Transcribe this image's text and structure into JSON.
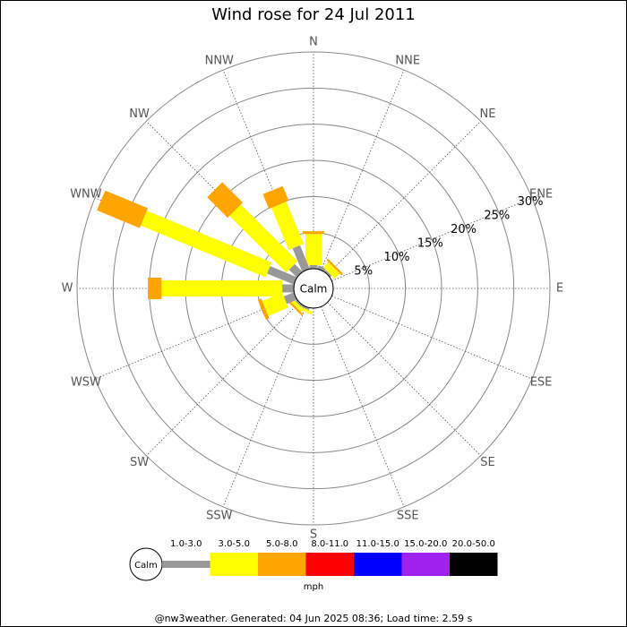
{
  "chart_data": {
    "type": "windrose",
    "title": "Wind rose for 24 Jul 2011",
    "directions": [
      "N",
      "NNE",
      "NE",
      "ENE",
      "E",
      "ESE",
      "SE",
      "SSE",
      "S",
      "SSW",
      "SW",
      "WSW",
      "W",
      "WNW",
      "NW",
      "NNW"
    ],
    "calm_label": "Calm",
    "unit": "mph",
    "footer": "@nw3weather. Generated: 04 Jun 2025 08:36; Load time: 2.59 s",
    "rlim": [
      0,
      30
    ],
    "rticks": [
      {
        "value": 5,
        "label": "5%"
      },
      {
        "value": 10,
        "label": "10%"
      },
      {
        "value": 15,
        "label": "15%"
      },
      {
        "value": 20,
        "label": "20%"
      },
      {
        "value": 25,
        "label": "25%"
      },
      {
        "value": 30,
        "label": "30%"
      }
    ],
    "series": [
      {
        "name": "1.0-3.0",
        "color": "#999999",
        "values": [
          0.5,
          0.5,
          0.3,
          0,
          0,
          0,
          0,
          0,
          0,
          0.3,
          0.3,
          1.5,
          1.6,
          4,
          1.5,
          3.5
        ]
      },
      {
        "name": "3.0-5.0",
        "color": "#ffff00",
        "values": [
          4.3,
          0,
          1.0,
          0,
          0,
          0,
          0,
          0,
          0,
          0.4,
          0.5,
          3,
          16.7,
          18.7,
          11.1,
          6.3
        ]
      },
      {
        "name": "5.0-8.0",
        "color": "#ffa500",
        "values": [
          0.4,
          0,
          0.3,
          0,
          0,
          0,
          0,
          0,
          0,
          0,
          0.3,
          0.5,
          1.9,
          6.4,
          4.0,
          2.2
        ]
      },
      {
        "name": "8.0-11.0",
        "color": "#ff0000",
        "values": [
          0,
          0,
          0,
          0,
          0,
          0,
          0,
          0,
          0,
          0,
          0,
          0,
          0,
          0,
          0,
          0
        ]
      },
      {
        "name": "11.0-15.0",
        "color": "#0000ff",
        "values": [
          0,
          0,
          0,
          0,
          0,
          0,
          0,
          0,
          0,
          0,
          0,
          0,
          0,
          0,
          0,
          0
        ]
      },
      {
        "name": "15.0-20.0",
        "color": "#a020f0",
        "values": [
          0,
          0,
          0,
          0,
          0,
          0,
          0,
          0,
          0,
          0,
          0,
          0,
          0,
          0,
          0,
          0
        ]
      },
      {
        "name": "20.0-50.0",
        "color": "#000000",
        "values": [
          0,
          0,
          0,
          0,
          0,
          0,
          0,
          0,
          0,
          0,
          0,
          0,
          0,
          0,
          0,
          0
        ]
      }
    ]
  }
}
